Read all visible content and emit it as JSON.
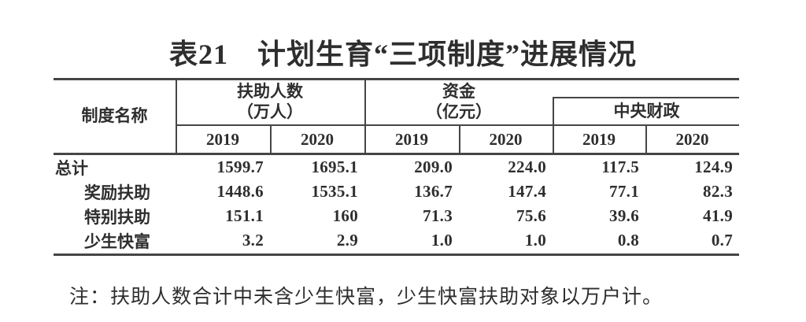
{
  "title": "表21　计划生育“三项制度”进展情况",
  "colors": {
    "text": "#2e2e2e",
    "rule": "#454545",
    "background": "#ffffff"
  },
  "table": {
    "row_header": "制度名称",
    "groups": [
      {
        "line1": "扶助人数",
        "line2": "（万人）"
      },
      {
        "line1": "资金",
        "line2": "（亿元）"
      },
      {
        "line1": "中央财政"
      }
    ],
    "year_cols": [
      "2019",
      "2020",
      "2019",
      "2020",
      "2019",
      "2020"
    ],
    "rows": [
      {
        "label": "总计",
        "values": [
          "1599.7",
          "1695.1",
          "209.0",
          "224.0",
          "117.5",
          "124.9"
        ]
      },
      {
        "label": "奖励扶助",
        "values": [
          "1448.6",
          "1535.1",
          "136.7",
          "147.4",
          "77.1",
          "82.3"
        ]
      },
      {
        "label": "特别扶助",
        "values": [
          "151.1",
          "160",
          "71.3",
          "75.6",
          "39.6",
          "41.9"
        ]
      },
      {
        "label": "少生快富",
        "values": [
          "3.2",
          "2.9",
          "1.0",
          "1.0",
          "0.8",
          "0.7"
        ]
      }
    ]
  },
  "note": "注：扶助人数合计中未含少生快富，少生快富扶助对象以万户计。"
}
